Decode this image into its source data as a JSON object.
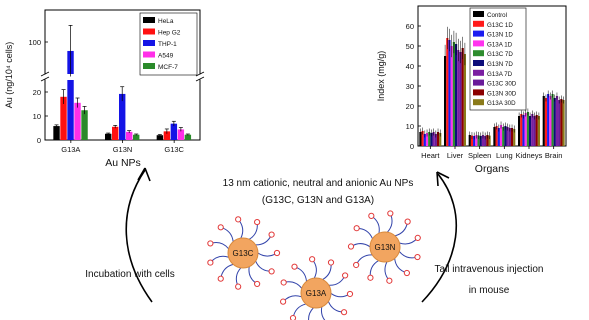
{
  "chart_data": [
    {
      "type": "bar",
      "xlabel": "Au NPs",
      "ylabel": "Au (ng/10⁴ cells)",
      "categories": [
        "G13A",
        "G13N",
        "G13C"
      ],
      "axis": {
        "lower_range": [
          0,
          25
        ],
        "upper_range": [
          75,
          125
        ],
        "broken": true,
        "lower_ticks": [
          "0",
          "10",
          "20"
        ],
        "upper_ticks": [
          "100"
        ]
      },
      "legend_position": "top-right",
      "series": [
        {
          "name": "HeLa",
          "color": "#000000",
          "values": [
            5.8,
            2.6,
            2.0
          ],
          "errors": [
            0.5,
            0.3,
            0.3
          ]
        },
        {
          "name": "Hep G2",
          "color": "#ff1010",
          "values": [
            18.0,
            5.5,
            3.6
          ],
          "errors": [
            3.0,
            0.6,
            1.0
          ]
        },
        {
          "name": "THP-1",
          "color": "#1414e6",
          "values": [
            93.0,
            19.2,
            6.8
          ],
          "errors": [
            20.0,
            3.0,
            1.0
          ]
        },
        {
          "name": "A549",
          "color": "#ff2fe8",
          "values": [
            15.5,
            3.4,
            4.4
          ],
          "errors": [
            2.0,
            0.5,
            0.8
          ]
        },
        {
          "name": "MCF-7",
          "color": "#2a8a2a",
          "values": [
            12.4,
            2.2,
            2.2
          ],
          "errors": [
            1.6,
            0.3,
            0.3
          ]
        }
      ]
    },
    {
      "type": "bar",
      "xlabel": "Organs",
      "ylabel": "Index (mg/g)",
      "categories": [
        "Heart",
        "Liver",
        "Spleen",
        "Lung",
        "Kidneys",
        "Brain"
      ],
      "ylim": [
        0,
        70
      ],
      "yticks": [
        0,
        10,
        20,
        30,
        40,
        50,
        60
      ],
      "legend_position": "top-left",
      "series": [
        {
          "name": "Control",
          "color": "#000000",
          "values": [
            7.0,
            45.0,
            5.5,
            9.5,
            15.0,
            25.0
          ]
        },
        {
          "name": "G13C 1D",
          "color": "#ff1a1a",
          "values": [
            7.5,
            54.0,
            5.2,
            10.0,
            16.0,
            24.0
          ]
        },
        {
          "name": "G13N 1D",
          "color": "#1c1cf0",
          "values": [
            6.0,
            53.0,
            5.0,
            9.0,
            15.5,
            26.0
          ]
        },
        {
          "name": "G13A 1D",
          "color": "#ff33ee",
          "values": [
            6.5,
            50.0,
            5.5,
            10.5,
            16.5,
            25.0
          ]
        },
        {
          "name": "G13C 7D",
          "color": "#2d8c2d",
          "values": [
            7.0,
            52.0,
            5.3,
            9.5,
            17.0,
            26.0
          ]
        },
        {
          "name": "G13N 7D",
          "color": "#0d0d7a",
          "values": [
            6.5,
            51.0,
            5.0,
            10.0,
            15.0,
            24.0
          ]
        },
        {
          "name": "G13A 7D",
          "color": "#7b1fa2",
          "values": [
            7.0,
            48.0,
            5.5,
            9.5,
            16.0,
            25.0
          ]
        },
        {
          "name": "G13C 30D",
          "color": "#6a1b9a",
          "values": [
            6.0,
            47.0,
            5.0,
            9.0,
            15.0,
            23.0
          ]
        },
        {
          "name": "G13N 30D",
          "color": "#8b0000",
          "values": [
            7.0,
            49.0,
            5.5,
            9.0,
            15.5,
            23.5
          ]
        },
        {
          "name": "G13A 30D",
          "color": "#8a7a1a",
          "values": [
            6.5,
            46.0,
            5.2,
            8.5,
            15.0,
            23.0
          ]
        }
      ],
      "error": 3.5
    }
  ],
  "diagram": {
    "title_line1": "13 nm cationic, neutral and anionic Au NPs",
    "title_line2": "(G13C, G13N and G13A)",
    "left_arrow_label": "Incubation with cells",
    "right_arrow_label_1": "Tail intravenous injection",
    "right_arrow_label_2": "in mouse",
    "particles": [
      "G13C",
      "G13N",
      "G13A"
    ],
    "particle_color": "#f2a560",
    "ligand_color": "#3344aa",
    "terminal_color": "#e23a3a"
  }
}
